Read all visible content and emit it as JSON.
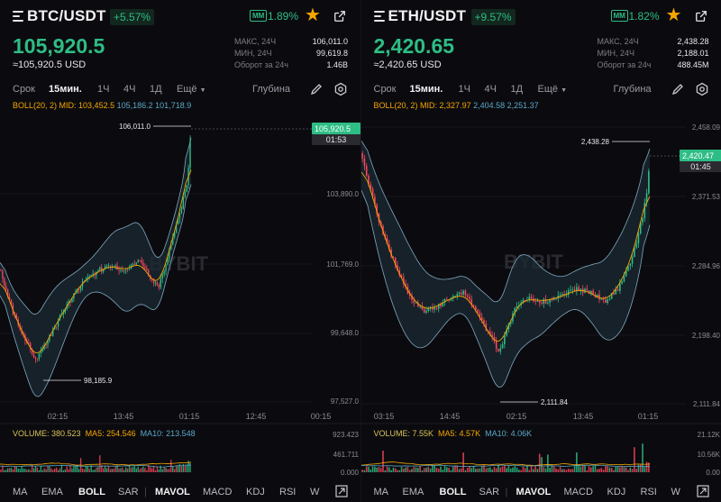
{
  "panels": [
    {
      "pair": "BTC/USDT",
      "change": "+5.57%",
      "mm_label": "MM",
      "mm_pct": "1.89%",
      "price": "105,920.5",
      "price_usd": "≈105,920.5 USD",
      "stats": [
        {
          "label": "МАКС, 24Ч",
          "value": "106,011.0"
        },
        {
          "label": "МИН, 24Ч",
          "value": "99,619.8"
        },
        {
          "label": "Оборот за 24ч",
          "value": "1.46B"
        }
      ],
      "timeframes": [
        "Срок",
        "15мин.",
        "1Ч",
        "4Ч",
        "1Д",
        "Ещё"
      ],
      "active_tf": "15мин.",
      "depth": "Глубина",
      "boll": {
        "name": "BOLL(20, 2)",
        "mid": "MID: 103,452.5",
        "up": "105,186.2",
        "dn": "101,718.9"
      },
      "y_ticks": [
        "103,890.0",
        "101,769.0",
        "99,648.0",
        "97,527.0"
      ],
      "x_ticks": [
        "02:15",
        "13:45",
        "01:15",
        "12:45",
        "00:15"
      ],
      "last_price": "105,920.5",
      "countdown": "01:53",
      "high_label": "106,011.0",
      "low_label": "98,185.9",
      "watermark": "BYBIT",
      "volume": {
        "vol": "VOLUME: 380.523",
        "ma5": "MA5: 254.546",
        "ma10": "MA10: 213.548",
        "ticks": [
          "923.423",
          "461.711",
          "0.000"
        ]
      },
      "indicators": [
        "MA",
        "EMA",
        "BOLL",
        "SAR",
        "MAVOL",
        "MACD",
        "KDJ",
        "RSI",
        "W"
      ],
      "accent": "#2ebd85",
      "down": "#f6465d"
    },
    {
      "pair": "ETH/USDT",
      "change": "+9.57%",
      "mm_label": "MM",
      "mm_pct": "1.82%",
      "price": "2,420.65",
      "price_usd": "≈2,420.65 USD",
      "stats": [
        {
          "label": "МАКС, 24Ч",
          "value": "2,438.28"
        },
        {
          "label": "МИН, 24Ч",
          "value": "2,188.01"
        },
        {
          "label": "Оборот за 24ч",
          "value": "488.45M"
        }
      ],
      "timeframes": [
        "Срок",
        "15мин.",
        "1Ч",
        "4Ч",
        "1Д",
        "Ещё"
      ],
      "active_tf": "15мин.",
      "depth": "Глубина",
      "boll": {
        "name": "BOLL(20, 2)",
        "mid": "MID: 2,327.97",
        "up": "2,404.58",
        "dn": "2,251.37"
      },
      "y_ticks": [
        "2,458.09",
        "2,371.53",
        "2,284.96",
        "2,198.40",
        "2,111.84"
      ],
      "x_ticks": [
        "03:15",
        "14:45",
        "02:15",
        "13:45",
        "01:15"
      ],
      "last_price": "2,420.47",
      "countdown": "01:45",
      "high_label": "2,438.28",
      "low_label": "2,111.84",
      "watermark": "BYBIT",
      "volume": {
        "vol": "VOLUME: 7.55K",
        "ma5": "MA5: 4.57K",
        "ma10": "MA10: 4.06K",
        "ticks": [
          "21.12K",
          "10.56K",
          "0.00"
        ]
      },
      "indicators": [
        "MA",
        "EMA",
        "BOLL",
        "SAR",
        "MAVOL",
        "MACD",
        "KDJ",
        "RSI",
        "W"
      ],
      "accent": "#2ebd85",
      "down": "#f6465d"
    }
  ]
}
